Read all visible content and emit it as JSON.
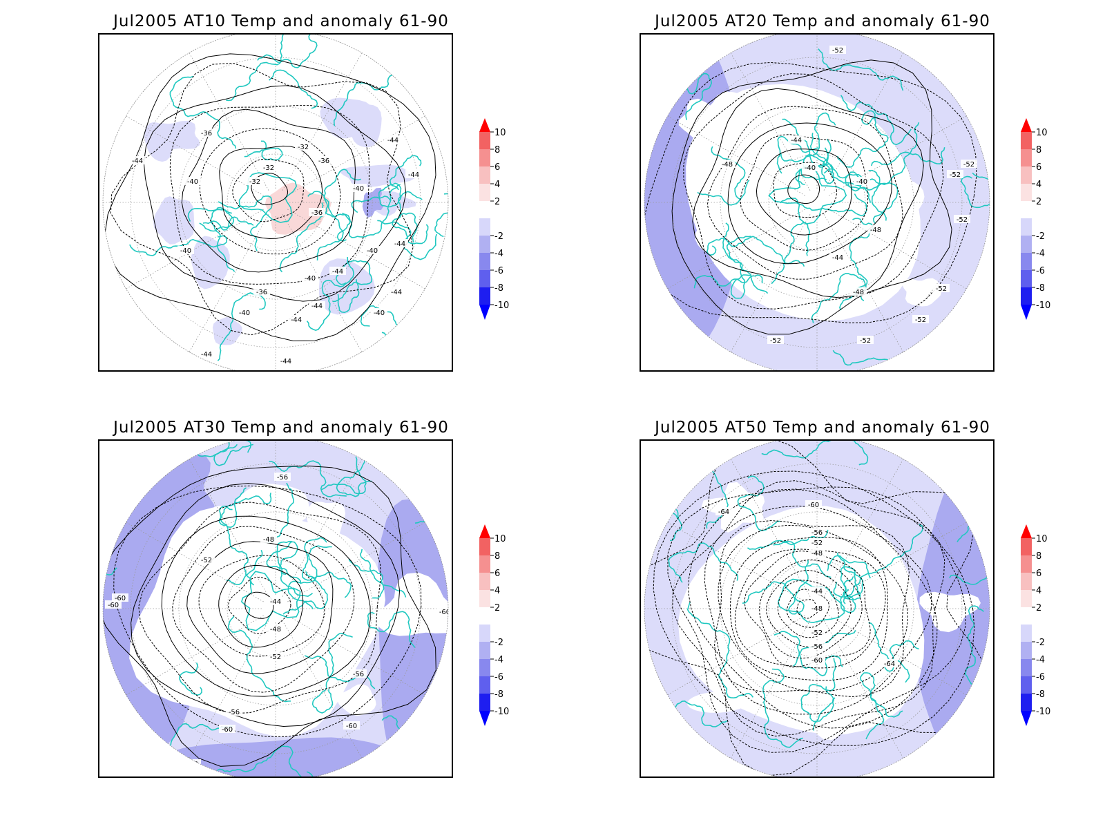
{
  "panels": [
    {
      "title": "Jul2005 AT10 Temp and anomaly 61-90",
      "contour_labels": [
        "-44",
        "-40",
        "-36",
        "-32",
        "-32",
        "-32",
        "-36",
        "-36",
        "-40",
        "-44",
        "-44",
        "-44",
        "-40",
        "-44",
        "-40",
        "-36",
        "-40",
        "-44",
        "-44",
        "-40",
        "-40",
        "-44",
        "-44",
        "-44"
      ],
      "anomaly_fill": "mostly white with light blue patches; light pink warm anomaly over Arctic/Greenland"
    },
    {
      "title": "Jul2005 AT20 Temp and anomaly 61-90",
      "contour_labels": [
        "-52",
        "-48",
        "-44",
        "-40",
        "-40",
        "-48",
        "-52",
        "-52",
        "-52",
        "-52",
        "-44",
        "-48",
        "-52",
        "-52",
        "-52"
      ],
      "anomaly_fill": "light blue with white center; darker blue band at left rim"
    },
    {
      "title": "Jul2005 AT30 Temp and anomaly 61-90",
      "contour_labels": [
        "-56",
        "-52",
        "-48",
        "-44",
        "-48",
        "-52",
        "-56",
        "-56",
        "-60",
        "-60",
        "-60",
        "-60",
        "-60",
        "-60"
      ],
      "anomaly_fill": "light blue with white center; darker blue rims"
    },
    {
      "title": "Jul2005 AT50 Temp and anomaly 61-90",
      "contour_labels": [
        "-60",
        "-64",
        "-56",
        "-52",
        "-48",
        "-44",
        "-48",
        "-52",
        "-56",
        "-60",
        "-64"
      ],
      "anomaly_fill": "light blue with white center; darker blue at right rim"
    }
  ],
  "colorbar": {
    "labels": [
      "10",
      "8",
      "6",
      "4",
      "2",
      "-2",
      "-4",
      "-6",
      "-8",
      "-10"
    ],
    "colors": [
      "#ff0000",
      "#f26262",
      "#f59090",
      "#f8c0c0",
      "#fbe2e2",
      "#ffffff",
      "#d7d7fa",
      "#b0b0f2",
      "#8888ee",
      "#5f5fee",
      "#1e1ef0",
      "#0000ff"
    ]
  },
  "colors": {
    "coast": "#20c8c0",
    "contour": "#000000",
    "grid": "#9a9a9a",
    "anomaly_light": "#dcdcfa",
    "anomaly_mid": "#aaaaf0",
    "anomaly_warm": "#f9d8d8"
  }
}
